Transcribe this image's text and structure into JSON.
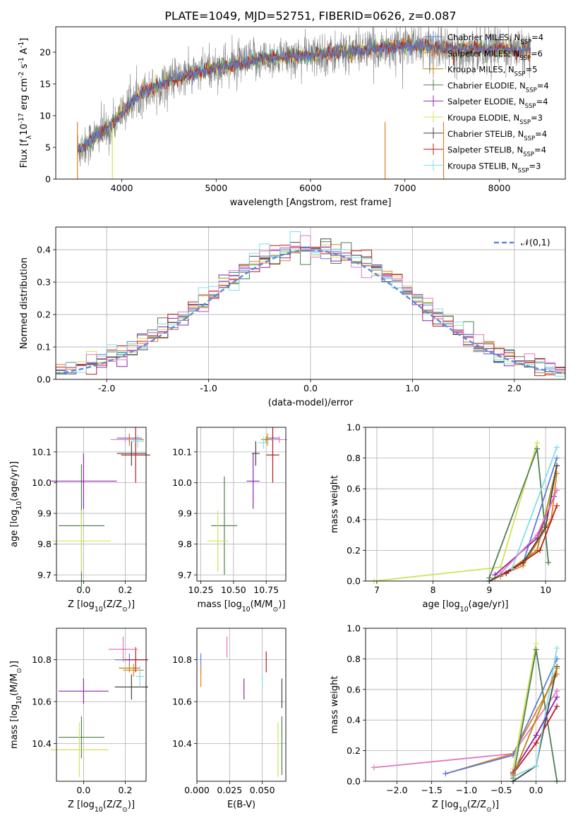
{
  "figure": {
    "title": "PLATE=1049, MJD=52751, FIBERID=0626, z=0.087"
  },
  "palette": {
    "Chabrier MILES": "#5b7fd6",
    "Salpeter MILES": "#e67e22",
    "Kroupa MILES": "#b8860b",
    "Chabrier ELODIE": "#4f7f4f",
    "Salpeter ELODIE": "#8e24aa",
    "Kroupa ELODIE": "#d4e157",
    "Chabrier STELIB": "#444444",
    "Salpeter STELIB": "#b71c1c",
    "Kroupa STELIB": "#80deea",
    "pink": "#e377c2",
    "spectrum": "#7f7f7f"
  },
  "chart_data": [
    {
      "id": "spectrum",
      "type": "line",
      "xlabel": "wavelength [Angstrom, rest frame]",
      "ylabel": "Flux [f$_\\lambda$10$^{-17}$ erg cm$^{-2}$ s$^{-1}$ A$^{-1}$]",
      "xlim": [
        3300,
        8700
      ],
      "ylim": [
        0,
        24
      ],
      "xticks": [
        4000,
        5000,
        6000,
        7000,
        8000
      ],
      "yticks": [
        0,
        5,
        10,
        15,
        20
      ],
      "legend_position": "upper right",
      "legend": [
        {
          "name": "Chabrier MILES",
          "nssp": "4"
        },
        {
          "name": "Salpeter MILES",
          "nssp": "6"
        },
        {
          "name": "Kroupa MILES",
          "nssp": "5"
        },
        {
          "name": "Chabrier ELODIE",
          "nssp": "4"
        },
        {
          "name": "Salpeter ELODIE",
          "nssp": "4"
        },
        {
          "name": "Kroupa ELODIE",
          "nssp": "3"
        },
        {
          "name": "Chabrier STELIB",
          "nssp": "4"
        },
        {
          "name": "Salpeter STELIB",
          "nssp": "4"
        },
        {
          "name": "Kroupa STELIB",
          "nssp": "3"
        }
      ],
      "continuum": {
        "x": [
          3530,
          3700,
          3900,
          4000,
          4200,
          4500,
          5000,
          5500,
          6000,
          6500,
          7000,
          7500,
          8000,
          8300
        ],
        "y": [
          4.5,
          6.5,
          8.5,
          10.5,
          13.5,
          15.5,
          17.5,
          19.0,
          19.5,
          20.3,
          21.0,
          20.5,
          20.6,
          20.2
        ]
      }
    },
    {
      "id": "residuals",
      "type": "histogram",
      "xlabel": "(data-model)/error",
      "ylabel": "Normed distribution",
      "xlim": [
        -2.5,
        2.5
      ],
      "ylim": [
        0,
        0.47
      ],
      "xticks": [
        -2,
        -1,
        0,
        1,
        2
      ],
      "yticks": [
        0.0,
        0.1,
        0.2,
        0.3,
        0.4
      ],
      "grid": true,
      "legend": [
        "$\\mathcal{N}(0,1)$"
      ],
      "legend_position": "upper right",
      "bins": 50
    },
    {
      "id": "age-vs-Z",
      "type": "scatter",
      "xlabel": "Z [log$_{10}$(Z/Z$_\\odot$)]",
      "ylabel": "age  [log$_{10}$(age/yr)]",
      "xlim": [
        -0.13,
        0.3
      ],
      "ylim": [
        9.68,
        10.18
      ],
      "xticks": [
        0.0,
        0.2
      ],
      "yticks": [
        9.7,
        9.8,
        9.9,
        10.0,
        10.1
      ],
      "points": [
        {
          "m": "Chabrier MILES",
          "x": 0.22,
          "y": 10.145,
          "xerr": 0.06,
          "yerr": 0.01
        },
        {
          "m": "Salpeter MILES",
          "x": 0.22,
          "y": 10.14,
          "xerr": 0.05,
          "yerr": 0.02
        },
        {
          "m": "Kroupa MILES",
          "x": 0.22,
          "y": 10.14,
          "xerr": 0.07,
          "yerr": 0.01
        },
        {
          "m": "Chabrier ELODIE",
          "x": -0.01,
          "y": 9.86,
          "xerr": 0.11,
          "yerr": 0.2
        },
        {
          "m": "Salpeter ELODIE",
          "x": 0.0,
          "y": 10.005,
          "xerr": 0.16,
          "yerr": 0.09
        },
        {
          "m": "Kroupa ELODIE",
          "x": -0.01,
          "y": 9.81,
          "xerr": 0.14,
          "yerr": 0.1
        },
        {
          "m": "Chabrier STELIB",
          "x": 0.23,
          "y": 10.095,
          "xerr": 0.07,
          "yerr": 0.04
        },
        {
          "m": "Salpeter STELIB",
          "x": 0.25,
          "y": 10.09,
          "xerr": 0.07,
          "yerr": 0.09
        },
        {
          "m": "Kroupa STELIB",
          "x": 0.26,
          "y": 10.135,
          "xerr": 0.03,
          "yerr": 0.02
        },
        {
          "m": "pink",
          "x": 0.2,
          "y": 10.14,
          "xerr": 0.07,
          "yerr": 0.01
        }
      ]
    },
    {
      "id": "age-vs-mass",
      "type": "scatter",
      "xlabel": "mass [log$_{10}$(M/M$_\\odot$)]",
      "ylabel": "",
      "xlim": [
        10.22,
        10.9
      ],
      "ylim": [
        9.68,
        10.18
      ],
      "xticks": [
        10.25,
        10.5,
        10.75
      ],
      "yticks": [
        9.7,
        9.8,
        9.9,
        10.0,
        10.1
      ],
      "points": [
        {
          "m": "Chabrier MILES",
          "x": 10.8,
          "y": 10.145,
          "xerr": 0.05,
          "yerr": 0.01
        },
        {
          "m": "Salpeter MILES",
          "x": 10.76,
          "y": 10.14,
          "xerr": 0.04,
          "yerr": 0.02
        },
        {
          "m": "Kroupa MILES",
          "x": 10.75,
          "y": 10.14,
          "xerr": 0.04,
          "yerr": 0.01
        },
        {
          "m": "Chabrier ELODIE",
          "x": 10.43,
          "y": 9.86,
          "xerr": 0.1,
          "yerr": 0.16
        },
        {
          "m": "Salpeter ELODIE",
          "x": 10.65,
          "y": 10.005,
          "xerr": 0.05,
          "yerr": 0.09
        },
        {
          "m": "Kroupa ELODIE",
          "x": 10.38,
          "y": 9.81,
          "xerr": 0.08,
          "yerr": 0.1
        },
        {
          "m": "Chabrier STELIB",
          "x": 10.67,
          "y": 10.095,
          "xerr": 0.03,
          "yerr": 0.04
        },
        {
          "m": "Salpeter STELIB",
          "x": 10.8,
          "y": 10.09,
          "xerr": 0.05,
          "yerr": 0.09
        },
        {
          "m": "Kroupa STELIB",
          "x": 10.73,
          "y": 10.13,
          "xerr": 0.04,
          "yerr": 0.02
        },
        {
          "m": "pink",
          "x": 10.85,
          "y": 10.14,
          "xerr": 0.06,
          "yerr": 0.01
        }
      ]
    },
    {
      "id": "weight-vs-age",
      "type": "line",
      "xlabel": "age  [log$_{10}$(age/yr)]",
      "ylabel": "mass weight",
      "xlim": [
        6.8,
        10.35
      ],
      "ylim": [
        0,
        1
      ],
      "xticks": [
        7,
        8,
        9,
        10
      ],
      "yticks": [
        0.0,
        0.2,
        0.4,
        0.6,
        0.8,
        1.0
      ],
      "grid": true,
      "series": [
        {
          "m": "Kroupa ELODIE",
          "x": [
            6.95,
            9.2,
            9.85
          ],
          "y": [
            0.0,
            0.09,
            0.9
          ]
        },
        {
          "m": "Chabrier ELODIE",
          "x": [
            9.0,
            9.85,
            10.05
          ],
          "y": [
            0.02,
            0.86,
            0.12
          ]
        },
        {
          "m": "Chabrier MILES",
          "x": [
            9.0,
            9.3,
            9.6,
            10.2
          ],
          "y": [
            0.0,
            0.05,
            0.12,
            0.8
          ]
        },
        {
          "m": "Salpeter MILES",
          "x": [
            9.1,
            9.6,
            10.1,
            10.2
          ],
          "y": [
            0.02,
            0.1,
            0.4,
            0.7
          ]
        },
        {
          "m": "Kroupa MILES",
          "x": [
            9.2,
            9.85,
            10.2
          ],
          "y": [
            0.03,
            0.2,
            0.75
          ]
        },
        {
          "m": "Salpeter ELODIE",
          "x": [
            9.1,
            9.85,
            10.15
          ],
          "y": [
            0.04,
            0.28,
            0.55
          ]
        },
        {
          "m": "Chabrier STELIB",
          "x": [
            9.0,
            9.6,
            10.0,
            10.2
          ],
          "y": [
            0.0,
            0.12,
            0.35,
            0.75
          ]
        },
        {
          "m": "Salpeter STELIB",
          "x": [
            9.3,
            9.9,
            10.2
          ],
          "y": [
            0.05,
            0.2,
            0.49
          ]
        },
        {
          "m": "Kroupa STELIB",
          "x": [
            9.4,
            10.2
          ],
          "y": [
            0.08,
            0.87
          ]
        },
        {
          "m": "pink",
          "x": [
            9.2,
            9.85,
            10.2
          ],
          "y": [
            0.05,
            0.3,
            0.59
          ]
        }
      ]
    },
    {
      "id": "mass-vs-Z",
      "type": "scatter",
      "xlabel": "Z [log$_{10}$(Z/Z$_\\odot$)]",
      "ylabel": "mass [log$_{10}$(M/M$_\\odot$)]",
      "xlim": [
        -0.13,
        0.3
      ],
      "ylim": [
        10.22,
        10.95
      ],
      "xticks": [
        0.0,
        0.2
      ],
      "yticks": [
        10.4,
        10.6,
        10.8
      ],
      "points": [
        {
          "m": "Chabrier MILES",
          "x": 0.22,
          "y": 10.8,
          "xerr": 0.07,
          "yerr": 0.03
        },
        {
          "m": "Salpeter MILES",
          "x": 0.24,
          "y": 10.75,
          "xerr": 0.05,
          "yerr": 0.03
        },
        {
          "m": "Kroupa MILES",
          "x": 0.22,
          "y": 10.76,
          "xerr": 0.05,
          "yerr": 0.02
        },
        {
          "m": "Chabrier ELODIE",
          "x": -0.01,
          "y": 10.43,
          "xerr": 0.11,
          "yerr": 0.1
        },
        {
          "m": "Salpeter ELODIE",
          "x": 0.0,
          "y": 10.65,
          "xerr": 0.12,
          "yerr": 0.06
        },
        {
          "m": "Kroupa ELODIE",
          "x": -0.02,
          "y": 10.37,
          "xerr": 0.14,
          "yerr": 0.13
        },
        {
          "m": "Chabrier STELIB",
          "x": 0.23,
          "y": 10.67,
          "xerr": 0.08,
          "yerr": 0.06
        },
        {
          "m": "Salpeter STELIB",
          "x": 0.25,
          "y": 10.8,
          "xerr": 0.06,
          "yerr": 0.06
        },
        {
          "m": "Kroupa STELIB",
          "x": 0.27,
          "y": 10.72,
          "xerr": 0.02,
          "yerr": 0.05
        },
        {
          "m": "pink",
          "x": 0.19,
          "y": 10.85,
          "xerr": 0.07,
          "yerr": 0.06
        }
      ]
    },
    {
      "id": "mass-vs-ebv",
      "type": "scatter",
      "xlabel": "E(B-V)",
      "ylabel": "",
      "xlim": [
        0.0,
        0.068
      ],
      "ylim": [
        10.22,
        10.95
      ],
      "xticks": [
        0.0,
        0.025,
        0.05
      ],
      "yticks": [
        10.4,
        10.6,
        10.8
      ],
      "points": [
        {
          "m": "Chabrier MILES",
          "x": 0.003,
          "y": 10.78,
          "yerr": 0.05
        },
        {
          "m": "Salpeter MILES",
          "x": 0.003,
          "y": 10.72,
          "yerr": 0.05
        },
        {
          "m": "pink",
          "x": 0.023,
          "y": 10.86,
          "yerr": 0.05
        },
        {
          "m": "Salpeter ELODIE",
          "x": 0.036,
          "y": 10.66,
          "yerr": 0.05
        },
        {
          "m": "Kroupa STELIB",
          "x": 0.05,
          "y": 10.7,
          "yerr": 0.03
        },
        {
          "m": "Salpeter STELIB",
          "x": 0.053,
          "y": 10.79,
          "yerr": 0.05
        },
        {
          "m": "Kroupa ELODIE",
          "x": 0.062,
          "y": 10.37,
          "yerr": 0.13
        },
        {
          "m": "Chabrier STELIB",
          "x": 0.065,
          "y": 10.64,
          "yerr": 0.07
        },
        {
          "m": "Chabrier ELODIE",
          "x": 0.065,
          "y": 10.39,
          "yerr": 0.14
        }
      ]
    },
    {
      "id": "weight-vs-Z",
      "type": "line",
      "xlabel": "Z [log$_{10}$(Z/Z$_\\odot$)]",
      "ylabel": "mass weight",
      "xlim": [
        -2.45,
        0.42
      ],
      "ylim": [
        0,
        1
      ],
      "xticks": [
        -2.0,
        -1.5,
        -1.0,
        -0.5,
        0.0
      ],
      "yticks": [
        0.0,
        0.2,
        0.4,
        0.6,
        0.8,
        1.0
      ],
      "grid": true,
      "series": [
        {
          "m": "pink",
          "x": [
            -2.33,
            -0.33,
            0.3
          ],
          "y": [
            0.09,
            0.18,
            0.59
          ]
        },
        {
          "m": "Salpeter MILES",
          "x": [
            -1.3,
            -0.33,
            0.3
          ],
          "y": [
            0.05,
            0.18,
            0.7
          ]
        },
        {
          "m": "Chabrier MILES",
          "x": [
            -1.3,
            -0.33,
            0.3
          ],
          "y": [
            0.05,
            0.17,
            0.8
          ]
        },
        {
          "m": "Kroupa ELODIE",
          "x": [
            -0.33,
            0.0
          ],
          "y": [
            0.08,
            0.9
          ]
        },
        {
          "m": "Chabrier ELODIE",
          "x": [
            -0.33,
            0.0,
            0.3
          ],
          "y": [
            0.02,
            0.86,
            0.0
          ]
        },
        {
          "m": "Chabrier STELIB",
          "x": [
            -0.33,
            0.0,
            0.3
          ],
          "y": [
            0.0,
            0.1,
            0.75
          ]
        },
        {
          "m": "Salpeter STELIB",
          "x": [
            -0.33,
            0.0,
            0.3
          ],
          "y": [
            0.05,
            0.25,
            0.49
          ]
        },
        {
          "m": "Kroupa STELIB",
          "x": [
            -0.33,
            0.0,
            0.3
          ],
          "y": [
            0.03,
            0.1,
            0.87
          ]
        },
        {
          "m": "Salpeter ELODIE",
          "x": [
            -0.33,
            0.0,
            0.3
          ],
          "y": [
            0.06,
            0.3,
            0.55
          ]
        },
        {
          "m": "Kroupa MILES",
          "x": [
            -0.33,
            0.3
          ],
          "y": [
            0.04,
            0.74
          ]
        }
      ]
    }
  ]
}
